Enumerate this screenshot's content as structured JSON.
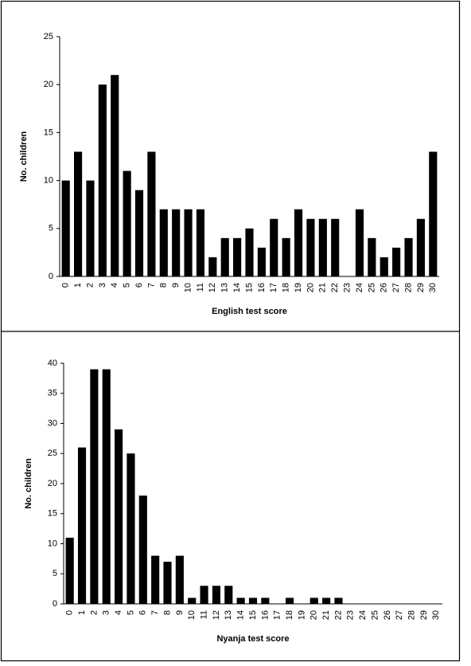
{
  "chart_data": [
    {
      "type": "bar",
      "x_label": "English test score",
      "y_label": "No. children",
      "categories": [
        "0",
        "1",
        "2",
        "3",
        "4",
        "5",
        "6",
        "7",
        "8",
        "9",
        "10",
        "11",
        "12",
        "13",
        "14",
        "15",
        "16",
        "17",
        "18",
        "19",
        "20",
        "21",
        "22",
        "23",
        "24",
        "25",
        "26",
        "27",
        "28",
        "29",
        "30"
      ],
      "values": [
        10,
        13,
        10,
        20,
        21,
        11,
        9,
        13,
        7,
        7,
        7,
        7,
        2,
        4,
        4,
        5,
        3,
        6,
        4,
        7,
        6,
        6,
        6,
        0,
        7,
        4,
        2,
        3,
        4,
        6,
        13
      ],
      "color": "#000000",
      "ylim": [
        0,
        25
      ],
      "yticks": [
        0,
        5,
        10,
        15,
        20,
        25
      ],
      "grid": false
    },
    {
      "type": "bar",
      "x_label": "Nyanja test score",
      "y_label": "No. children",
      "categories": [
        "0",
        "1",
        "2",
        "3",
        "4",
        "5",
        "6",
        "7",
        "8",
        "9",
        "10",
        "11",
        "12",
        "13",
        "14",
        "15",
        "16",
        "17",
        "18",
        "19",
        "20",
        "21",
        "22",
        "23",
        "24",
        "25",
        "26",
        "27",
        "28",
        "29",
        "30"
      ],
      "values": [
        11,
        26,
        39,
        39,
        29,
        25,
        18,
        8,
        7,
        8,
        1,
        3,
        3,
        3,
        1,
        1,
        1,
        0,
        1,
        0,
        1,
        1,
        1,
        0,
        0,
        0,
        0,
        0,
        0,
        0,
        0
      ],
      "color": "#000000",
      "ylim": [
        0,
        40
      ],
      "yticks": [
        0,
        5,
        10,
        15,
        20,
        25,
        30,
        35,
        40
      ],
      "grid": false
    }
  ]
}
